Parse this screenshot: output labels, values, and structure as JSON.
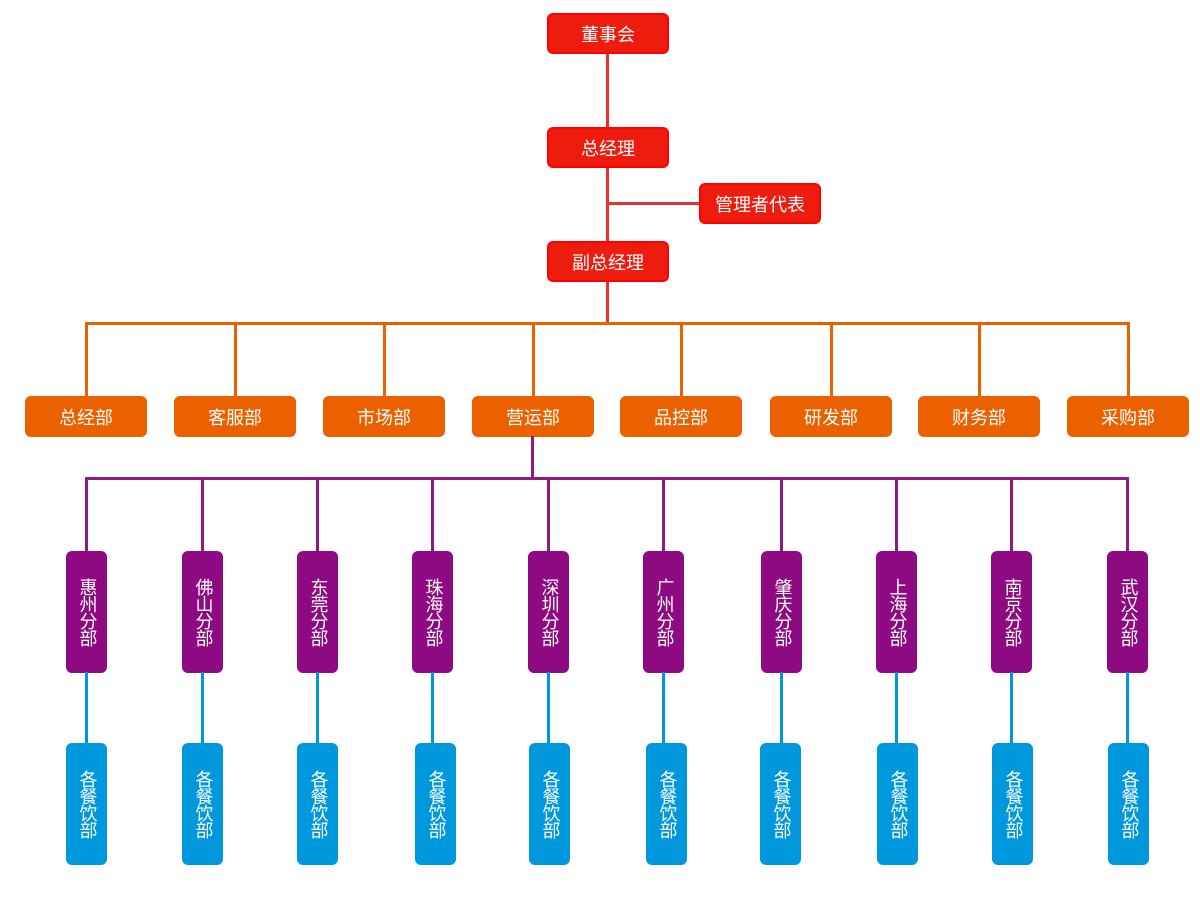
{
  "top": [
    {
      "label": "董事会"
    },
    {
      "label": "总经理"
    },
    {
      "label": "副总经理"
    }
  ],
  "side": {
    "label": "管理者代表"
  },
  "departments": [
    {
      "label": "总经部"
    },
    {
      "label": "客服部"
    },
    {
      "label": "市场部"
    },
    {
      "label": "营运部"
    },
    {
      "label": "品控部"
    },
    {
      "label": "研发部"
    },
    {
      "label": "财务部"
    },
    {
      "label": "采购部"
    }
  ],
  "branches": [
    {
      "label": "惠州分部",
      "child": "各餐饮部"
    },
    {
      "label": "佛山分部",
      "child": "各餐饮部"
    },
    {
      "label": "东莞分部",
      "child": "各餐饮部"
    },
    {
      "label": "珠海分部",
      "child": "各餐饮部"
    },
    {
      "label": "深圳分部",
      "child": "各餐饮部"
    },
    {
      "label": "广州分部",
      "child": "各餐饮部"
    },
    {
      "label": "肇庆分部",
      "child": "各餐饮部"
    },
    {
      "label": "上海分部",
      "child": "各餐饮部"
    },
    {
      "label": "南京分部",
      "child": "各餐饮部"
    },
    {
      "label": "武汉分部",
      "child": "各餐饮部"
    }
  ],
  "colors": {
    "executive": "#ee1c0e",
    "department": "#eb6100",
    "branch": "#8e0a82",
    "unit": "#0098dd"
  }
}
